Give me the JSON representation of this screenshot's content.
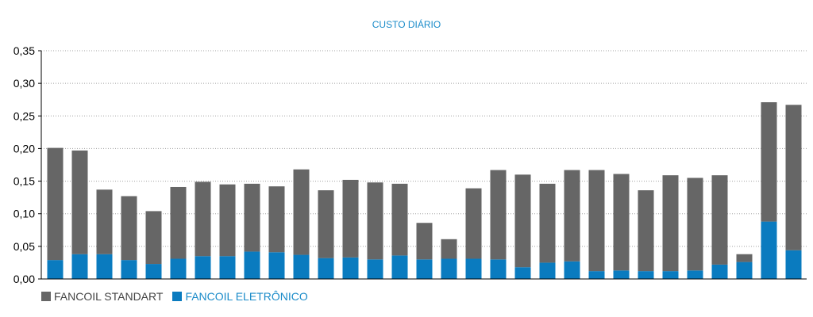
{
  "chart_data": {
    "type": "bar",
    "stacked": true,
    "title": "CUSTO DIÁRIO",
    "xlabel": "",
    "ylabel": "",
    "ylim": [
      0,
      0.35
    ],
    "yticks": [
      "0,00",
      "0,05",
      "0,10",
      "0,15",
      "0,20",
      "0,25",
      "0,30",
      "0,35"
    ],
    "grid": true,
    "legend_position": "bottom-left",
    "series": [
      {
        "name": "FANCOIL ELETRÔNICO",
        "color": "#0a7bbf",
        "values": [
          0.029,
          0.038,
          0.038,
          0.029,
          0.023,
          0.031,
          0.035,
          0.035,
          0.042,
          0.041,
          0.037,
          0.032,
          0.033,
          0.03,
          0.036,
          0.03,
          0.031,
          0.031,
          0.03,
          0.018,
          0.025,
          0.027,
          0.012,
          0.013,
          0.012,
          0.012,
          0.013,
          0.022,
          0.026,
          0.088,
          0.044
        ]
      },
      {
        "name": "FANCOIL STANDART",
        "color": "#666666",
        "values": [
          0.172,
          0.159,
          0.099,
          0.098,
          0.081,
          0.11,
          0.114,
          0.11,
          0.104,
          0.101,
          0.131,
          0.104,
          0.119,
          0.118,
          0.11,
          0.056,
          0.03,
          0.108,
          0.137,
          0.142,
          0.121,
          0.14,
          0.155,
          0.148,
          0.124,
          0.147,
          0.142,
          0.137,
          0.012,
          0.183,
          0.223
        ]
      }
    ],
    "colors": {
      "title": "#1a8bc9",
      "axis": "#000000",
      "grid": "#a0a0a0",
      "legend_text_standart": "#444444",
      "legend_text_eletronico": "#1a8bc9"
    }
  }
}
